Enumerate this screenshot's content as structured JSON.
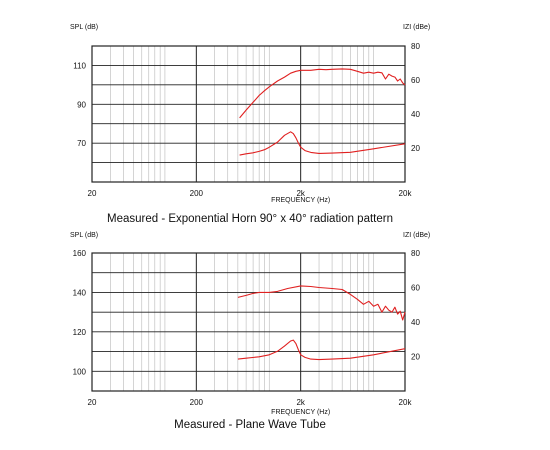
{
  "colors": {
    "curve": "#e02020",
    "major_grid": "#222222",
    "minor_grid": "#b8b8b8",
    "background": "#ffffff"
  },
  "chart_data": [
    {
      "type": "line",
      "title": "Measured - Exponential Horn 90° x 40° radiation pattern",
      "xlabel": "FREQUENCY (Hz)",
      "ylabel": "SPL (dB)",
      "ylabel_right": "IZI (dBe)",
      "x_scale": "log",
      "xlim": [
        20,
        20000
      ],
      "x_ticks": [
        "20",
        "200",
        "2k",
        "20k"
      ],
      "ylim": [
        50,
        120
      ],
      "y_ticks": [
        70,
        90,
        110
      ],
      "ylim_right": [
        0,
        80
      ],
      "y_ticks_right": [
        20,
        40,
        60,
        80
      ],
      "grid": true,
      "series": [
        {
          "axis": "left",
          "x": [
            520,
            600,
            700,
            800,
            900,
            1000,
            1200,
            1400,
            1600,
            1800,
            2000,
            2500,
            3000,
            3500,
            4000,
            5000,
            6000,
            7000,
            8000,
            9000,
            10000,
            11000,
            12000,
            13000,
            14000,
            15000,
            16000,
            17000,
            18000,
            19000,
            20000
          ],
          "y": [
            83,
            87,
            91,
            94.5,
            97,
            99,
            102,
            104,
            106,
            107,
            107.5,
            107.5,
            108,
            107.8,
            108,
            108.2,
            108,
            107,
            106,
            106.5,
            106,
            106.5,
            106.2,
            103,
            105.5,
            104.5,
            104,
            102,
            103,
            101,
            100
          ]
        },
        {
          "axis": "right",
          "x": [
            520,
            600,
            700,
            800,
            900,
            1000,
            1200,
            1400,
            1600,
            1700,
            1800,
            1900,
            2000,
            2200,
            2500,
            3000,
            4000,
            6000,
            10000,
            20000
          ],
          "y": [
            15.8,
            16.6,
            17.2,
            18,
            19,
            20.5,
            23.5,
            27.5,
            29.5,
            28.5,
            26,
            23,
            20.5,
            18.5,
            17.4,
            16.8,
            17,
            17.5,
            19.5,
            22.5
          ]
        }
      ]
    },
    {
      "type": "line",
      "title": "Measured - Plane Wave Tube",
      "xlabel": "FREQUENCY (Hz)",
      "ylabel": "SPL (dB)",
      "ylabel_right": "IZI (dBe)",
      "x_scale": "log",
      "xlim": [
        20,
        20000
      ],
      "x_ticks": [
        "20",
        "200",
        "2k",
        "20k"
      ],
      "ylim": [
        90,
        160
      ],
      "y_ticks": [
        100,
        120,
        140,
        160
      ],
      "ylim_right": [
        0,
        80
      ],
      "y_ticks_right": [
        20,
        40,
        60,
        80
      ],
      "grid": true,
      "series": [
        {
          "axis": "left",
          "x": [
            500,
            600,
            700,
            800,
            1000,
            1200,
            1500,
            2000,
            2500,
            3000,
            4000,
            5000,
            6000,
            7000,
            8000,
            9000,
            10000,
            11000,
            12000,
            13000,
            14000,
            15000,
            16000,
            17000,
            18000,
            19000,
            20000
          ],
          "y": [
            137.5,
            138.5,
            139.5,
            140,
            140,
            140.5,
            142,
            143.3,
            143,
            142.5,
            142,
            141.5,
            139,
            136.5,
            134,
            135.5,
            133,
            134,
            130,
            133,
            131,
            130,
            132.5,
            129,
            130.5,
            126,
            130
          ]
        },
        {
          "axis": "right",
          "x": [
            500,
            600,
            800,
            1000,
            1200,
            1400,
            1600,
            1700,
            1800,
            1900,
            2000,
            2200,
            2500,
            3000,
            4000,
            6000,
            10000,
            20000
          ],
          "y": [
            18.5,
            19,
            19.8,
            21,
            23,
            26,
            29,
            29.5,
            27.5,
            24,
            21,
            19.5,
            18.5,
            18.2,
            18.5,
            19,
            21,
            24.5
          ]
        }
      ]
    }
  ]
}
